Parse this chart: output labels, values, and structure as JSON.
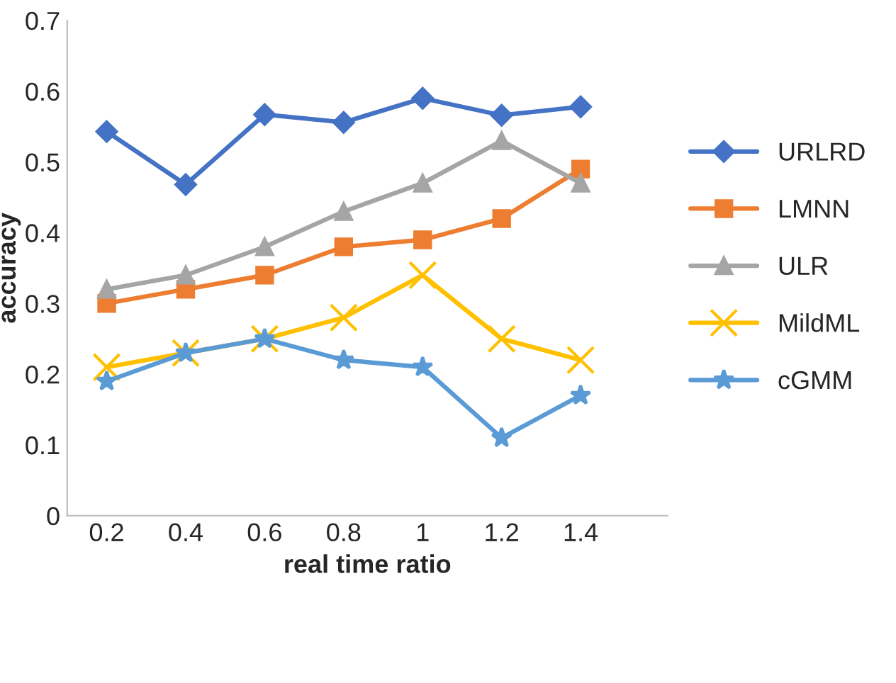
{
  "chart_data": {
    "type": "line",
    "xlabel": "real time ratio",
    "ylabel": "accuracy",
    "categories": [
      "0.2",
      "0.4",
      "0.6",
      "0.8",
      "1",
      "1.2",
      "1.4"
    ],
    "series": [
      {
        "name": "URLRD",
        "color": "#4472c4",
        "marker": "diamond",
        "values": [
          0.543,
          0.468,
          0.567,
          0.556,
          0.59,
          0.566,
          0.578
        ]
      },
      {
        "name": "LMNN",
        "color": "#ed7d31",
        "marker": "square",
        "values": [
          0.3,
          0.32,
          0.34,
          0.38,
          0.39,
          0.42,
          0.49
        ]
      },
      {
        "name": "ULR",
        "color": "#a5a5a5",
        "marker": "triangle",
        "values": [
          0.32,
          0.34,
          0.38,
          0.43,
          0.47,
          0.53,
          0.47
        ]
      },
      {
        "name": "MildML",
        "color": "#ffc000",
        "marker": "cross",
        "values": [
          0.21,
          0.23,
          0.25,
          0.28,
          0.34,
          0.25,
          0.22
        ]
      },
      {
        "name": "cGMM",
        "color": "#5b9bd5",
        "marker": "star",
        "values": [
          0.19,
          0.23,
          0.25,
          0.22,
          0.21,
          0.11,
          0.17
        ]
      }
    ],
    "ylim": [
      0,
      0.7
    ],
    "yticks": [
      0,
      0.1,
      0.2,
      0.3,
      0.4,
      0.5,
      0.6,
      0.7
    ],
    "grid": false,
    "legend": "right",
    "line_style": "solid"
  }
}
